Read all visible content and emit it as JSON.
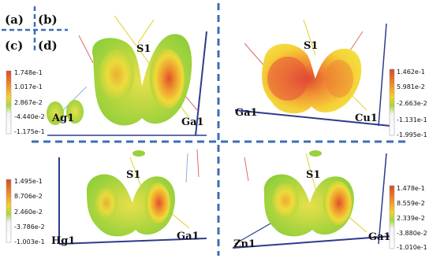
{
  "panel_letters": [
    "(a)",
    "(b)",
    "(c)",
    "(d)"
  ],
  "panels": [
    {
      "id": "a",
      "atoms": {
        "top": "S1",
        "left": "Ag1",
        "right": "Ga1"
      },
      "legend": [
        "1.748e-1",
        "1.017e-1",
        "2.867e-2",
        "-4.440e-2",
        "-1.175e-1"
      ]
    },
    {
      "id": "b",
      "atoms": {
        "top": "S1",
        "left": "Ga1",
        "right": "Cu1"
      },
      "legend": [
        "1.462e-1",
        "5.981e-2",
        "-2.663e-2",
        "-1.131e-1",
        "-1.995e-1"
      ]
    },
    {
      "id": "c",
      "atoms": {
        "top": "S1",
        "left": "Hg1",
        "right": "Ga1"
      },
      "legend": [
        "1.495e-1",
        "8.706e-2",
        "2.460e-2",
        "-3.786e-2",
        "-1.003e-1"
      ]
    },
    {
      "id": "d",
      "atoms": {
        "top": "S1",
        "left": "Zn1",
        "right": "Ga1"
      },
      "legend": [
        "1.478e-1",
        "8.559e-2",
        "2.339e-2",
        "-3.880e-2",
        "-1.010e-1"
      ]
    }
  ],
  "colors": {
    "divider": "#3a6fb5",
    "bond_frame": "#2c3b8f",
    "bond_red": "#e06a6a",
    "bond_yellow": "#e8d84a",
    "scale_top": "#d9472b",
    "scale_mid_high": "#f5b32c",
    "scale_mid": "#a6d83a",
    "scale_low": "#f2f2f2",
    "scale_bottom": "#ffffff"
  }
}
